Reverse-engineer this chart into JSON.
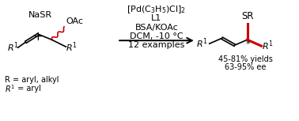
{
  "bg_color": "#ffffff",
  "black": "#000000",
  "red": "#cc0000",
  "figsize": [
    3.78,
    1.53
  ],
  "dpi": 100,
  "fs_main": 8.0,
  "fs_sub": 5.5,
  "fs_small": 7.0,
  "nasr_text": "NaSR",
  "plus_text": "+",
  "oac_text": "OAc",
  "cat1": "[Pd(C",
  "cat1_sub3": "3",
  "cat1_H": "H",
  "cat1_sub5": "5",
  "cat1_end": ")Cl]",
  "cat1_sub2": "2",
  "cat2": "L1",
  "cat3": "BSA/KOAc",
  "cat4": "DCM, -10 °C",
  "cat5": "12 examples",
  "prod_sr": "SR",
  "prod_yield": "45-81% yields",
  "prod_ee": "63-95% ee",
  "prod_star": "*",
  "fn1": "R = aryl, alkyl",
  "fn2_r": "R",
  "fn2_sup": "1",
  "fn2_rest": " = aryl"
}
